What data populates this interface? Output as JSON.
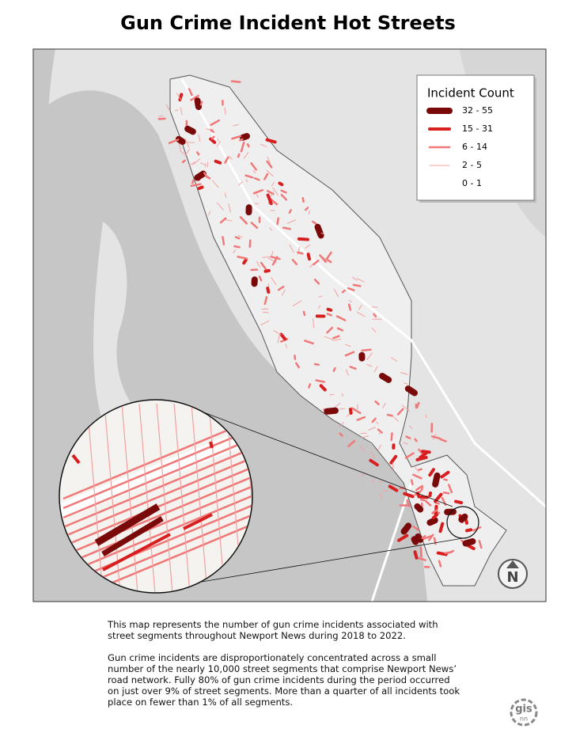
{
  "title": "Gun Crime Incident Hot Streets",
  "legend": {
    "title": "Incident Count",
    "items": [
      {
        "label": "32 - 55",
        "color": "#7a0a0a"
      },
      {
        "label": "15 - 31",
        "color": "#d81e1e"
      },
      {
        "label": "6 - 14",
        "color": "#f07878"
      },
      {
        "label": "2 - 5",
        "color": "#f4a0a0"
      },
      {
        "label": "0 - 1",
        "color": "#d9d9d9"
      }
    ]
  },
  "description": [
    "This map represents the number of gun crime incidents associated with street segments throughout Newport News during 2018 to 2022.",
    "Gun crime incidents are disproportionately concentrated across a small number of the nearly 10,000 street segments that comprise Newport News’ road network. Fully 80% of gun crime incidents during the period occurred on just over 9% of street segments. More than a quarter of all incidents took place on fewer than 1% of all segments."
  ],
  "north_arrow": "N",
  "logo": {
    "main": "gis",
    "sub": "nn"
  }
}
